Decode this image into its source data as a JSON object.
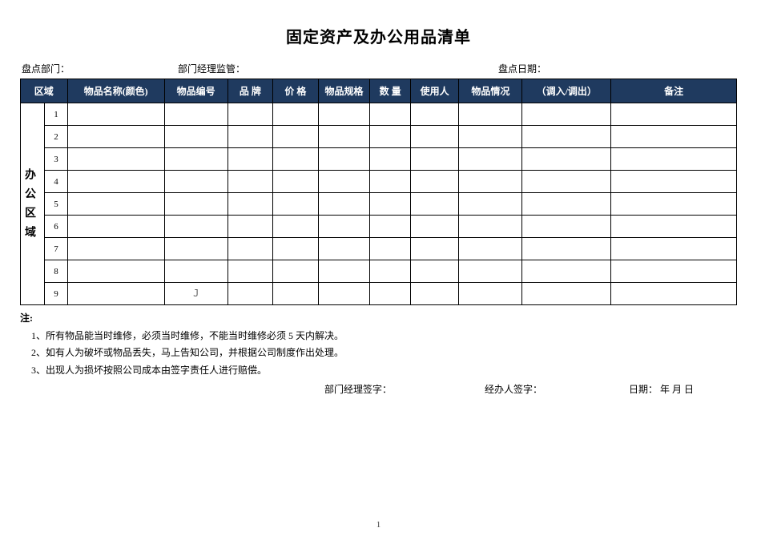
{
  "title": "固定资产及办公用品清单",
  "info": {
    "dept_label": "盘点部门：",
    "supervisor_label": "部门经理监管：",
    "date_label": "盘点日期："
  },
  "table": {
    "header_bg": "#1f3a5f",
    "header_color": "#ffffff",
    "border_color": "#000000",
    "columns": {
      "area": "区域",
      "name": "物品名称(颜色)",
      "code": "物品编号",
      "brand": "品 牌",
      "price": "价 格",
      "spec": "物品规格",
      "qty": "数 量",
      "user": "使用人",
      "cond": "物品情况",
      "transfer": "（调入/调出）",
      "remark": "备注"
    },
    "area_label": "办公区域",
    "row_nums": [
      "1",
      "2",
      "3",
      "4",
      "5",
      "6",
      "7",
      "8",
      "9"
    ],
    "cursor_row": 9,
    "cursor_col": "code",
    "cursor_char": "J"
  },
  "notes": {
    "header": "注:",
    "items": [
      "1、所有物品能当时维修，必须当时维修，不能当时维修必须 5 天内解决。",
      "2、如有人为破坏或物品丢失，马上告知公司，并根据公司制度作出处理。",
      "3、出现人为损坏按照公司成本由签字责任人进行赔偿。"
    ]
  },
  "signatures": {
    "mgr": "部门经理签字：",
    "handler": "经办人签字：",
    "date": "日期：      年    月    日"
  },
  "page_number": "1"
}
